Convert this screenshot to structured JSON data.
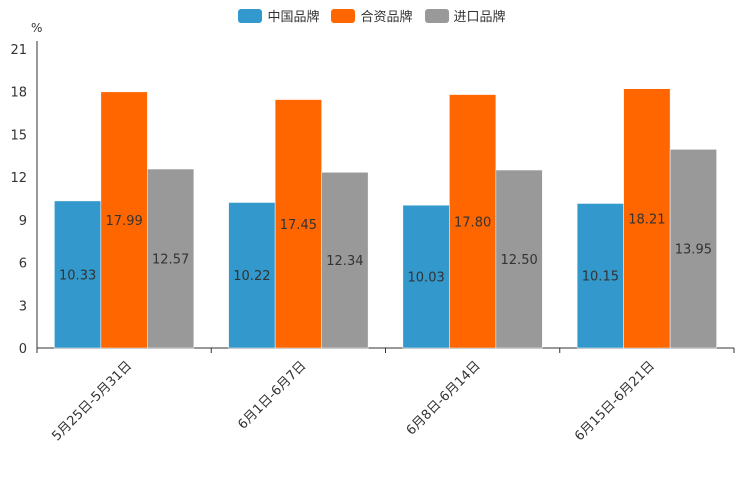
{
  "chart_data": {
    "type": "bar",
    "unit": "%",
    "categories": [
      "5月25日-5月31日",
      "6月1日-6月7日",
      "6月8日-6月14日",
      "6月15日-6月21日"
    ],
    "series": [
      {
        "name": "中国品牌",
        "color": "#3398cc",
        "values": [
          10.33,
          10.22,
          10.03,
          10.15
        ]
      },
      {
        "name": "合资品牌",
        "color": "#ff6600",
        "values": [
          17.99,
          17.45,
          17.8,
          18.21
        ]
      },
      {
        "name": "进口品牌",
        "color": "#999999",
        "values": [
          12.57,
          12.34,
          12.5,
          13.95
        ]
      }
    ],
    "yticks": [
      0,
      3,
      6,
      9,
      12,
      15,
      18,
      21
    ],
    "ylim": [
      0,
      21
    ],
    "legend_position": "top-center"
  }
}
